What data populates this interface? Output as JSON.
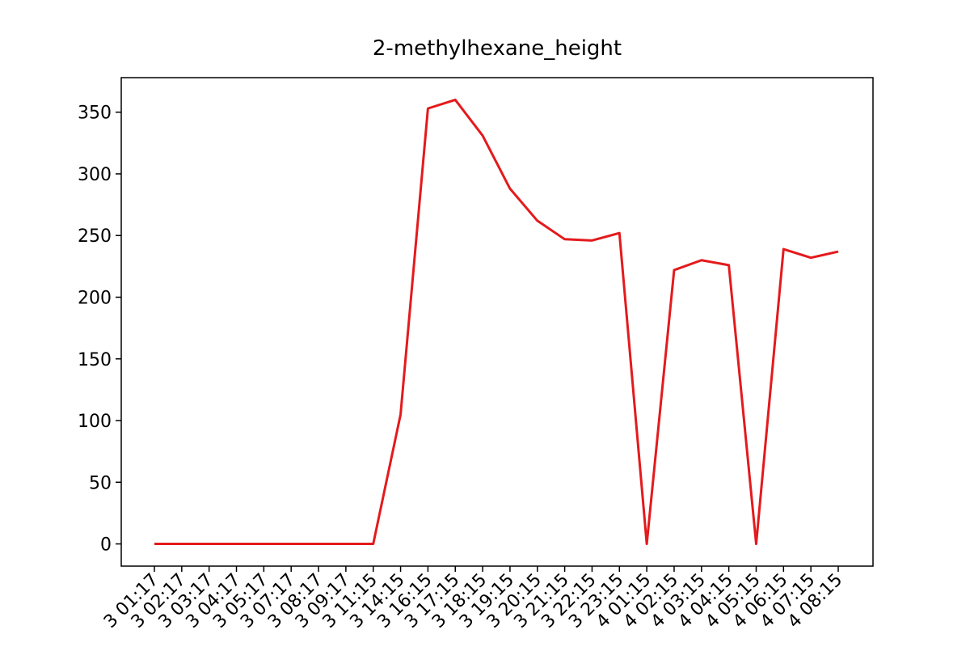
{
  "chart_data": {
    "type": "line",
    "title": "2-methylhexane_height",
    "categories": [
      "3 01:17",
      "3 02:17",
      "3 03:17",
      "3 04:17",
      "3 05:17",
      "3 07:17",
      "3 08:17",
      "3 09:17",
      "3 11:15",
      "3 14:15",
      "3 16:15",
      "3 17:15",
      "3 18:15",
      "3 19:15",
      "3 20:15",
      "3 21:15",
      "3 22:15",
      "3 23:15",
      "4 01:15",
      "4 02:15",
      "4 03:15",
      "4 04:15",
      "4 05:15",
      "4 06:15",
      "4 07:15",
      "4 08:15"
    ],
    "values": [
      0,
      0,
      0,
      0,
      0,
      0,
      0,
      0,
      0,
      105,
      353,
      360,
      331,
      288,
      262,
      247,
      246,
      252,
      0,
      222,
      230,
      226,
      0,
      239,
      232,
      237
    ],
    "color": "#e41a1c",
    "ylim": [
      -18,
      378
    ],
    "yticks": [
      0,
      50,
      100,
      150,
      200,
      250,
      300,
      350
    ],
    "grid": false
  }
}
